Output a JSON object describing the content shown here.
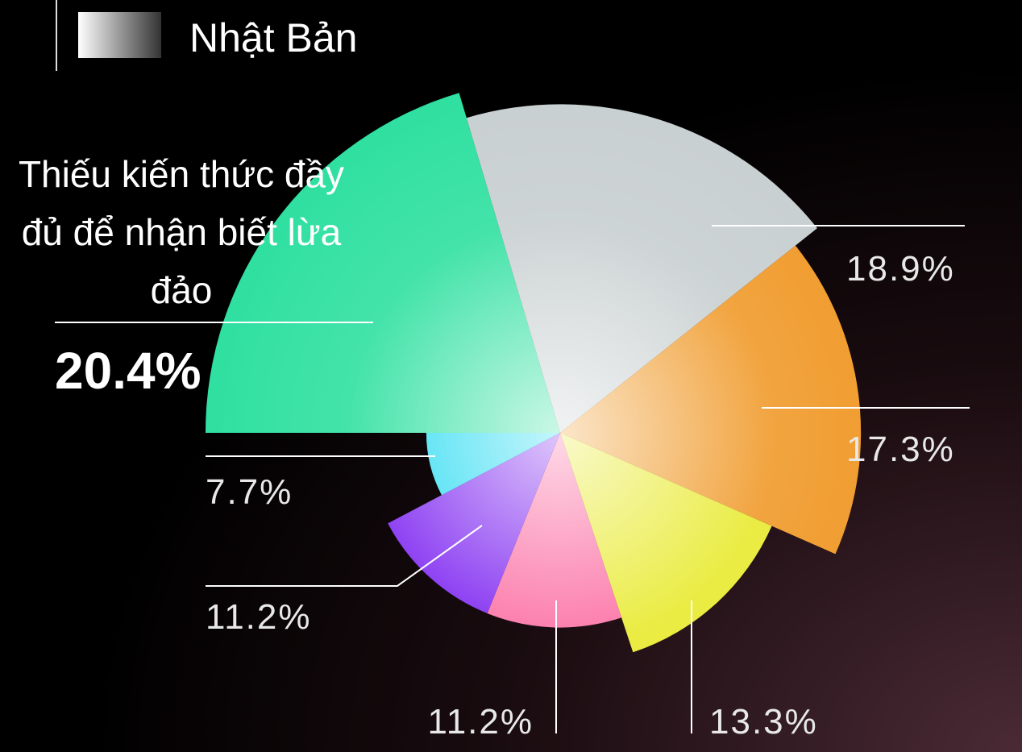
{
  "chart_data": {
    "type": "pie",
    "legend": "Nhật Bản",
    "categories": [
      "Thiếu kiến thức đầy đủ để nhận biết lừa đảo",
      null,
      null,
      null,
      null,
      null,
      null
    ],
    "values": [
      20.4,
      18.9,
      17.3,
      13.3,
      11.2,
      11.2,
      7.7
    ],
    "value_labels": [
      "20.4%",
      "18.9%",
      "17.3%",
      "13.3%",
      "11.2%",
      "11.2%",
      "7.7%"
    ],
    "colors": [
      "#2fe0a0",
      "#c8cfd0",
      "#f09a2a",
      "#e8ea30",
      "#fb6aa0",
      "#7a20f0",
      "#1ad8f0"
    ]
  }
}
